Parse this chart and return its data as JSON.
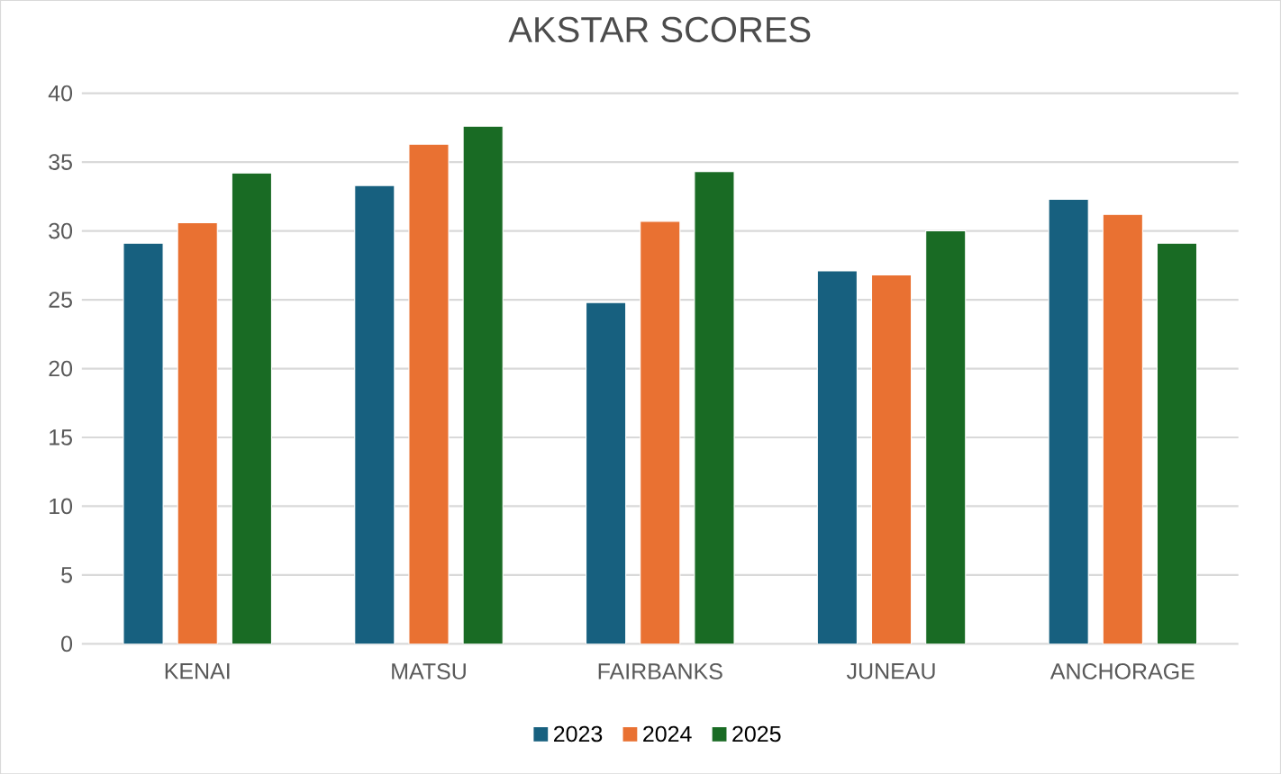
{
  "chart_data": {
    "type": "bar",
    "title": "AKSTAR SCORES",
    "categories": [
      "KENAI",
      "MATSU",
      "FAIRBANKS",
      "JUNEAU",
      "ANCHORAGE"
    ],
    "series": [
      {
        "name": "2023",
        "color": "#17607f",
        "values": [
          29.1,
          33.3,
          24.8,
          27.1,
          32.3
        ]
      },
      {
        "name": "2024",
        "color": "#e97132",
        "values": [
          30.6,
          36.3,
          30.7,
          26.8,
          31.2
        ]
      },
      {
        "name": "2025",
        "color": "#196b24",
        "values": [
          34.2,
          37.6,
          34.3,
          30.0,
          29.1
        ]
      }
    ],
    "ylim": [
      0,
      40
    ],
    "yticks": [
      0,
      5,
      10,
      15,
      20,
      25,
      30,
      35,
      40
    ],
    "grid": "y",
    "legend": "bottom"
  }
}
